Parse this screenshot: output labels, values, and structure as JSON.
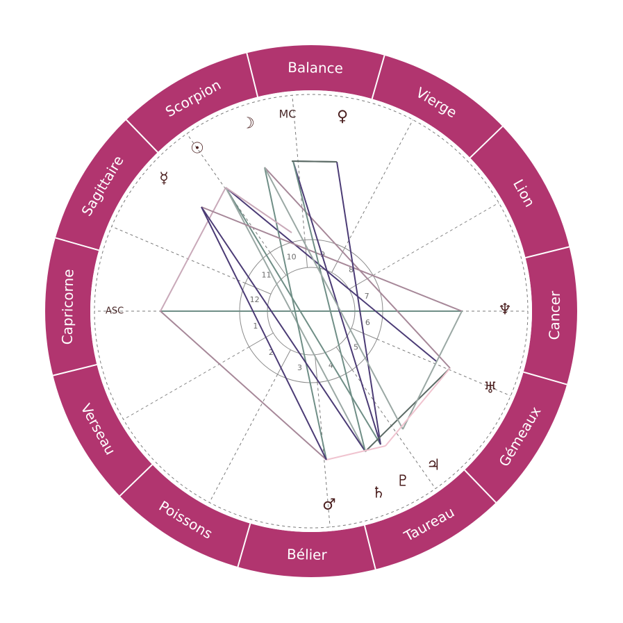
{
  "colors": {
    "zodiac_ring": "#b1356f",
    "planet_glyph": "#4a1e1e",
    "divider": "#ffffff",
    "cusp_line": "#7a7a7a"
  },
  "zodiac_signs": [
    {
      "name": "Bélier"
    },
    {
      "name": "Poissons"
    },
    {
      "name": "Verseau"
    },
    {
      "name": "Capricorne"
    },
    {
      "name": "Sagittaire"
    },
    {
      "name": "Scorpion"
    },
    {
      "name": "Balance"
    },
    {
      "name": "Vierge"
    },
    {
      "name": "Lion"
    },
    {
      "name": "Cancer"
    },
    {
      "name": "Gémeaux"
    },
    {
      "name": "Taureau"
    }
  ],
  "axes": {
    "asc": "ASC",
    "mc": "MC"
  },
  "houses": [
    "1",
    "2",
    "3",
    "4",
    "5",
    "6",
    "7",
    "8",
    "9",
    "10",
    "11",
    "12"
  ],
  "planets": [
    {
      "name": "moon-icon",
      "glyph": "☽"
    },
    {
      "name": "venus-icon",
      "glyph": "♀"
    },
    {
      "name": "sun-icon",
      "glyph": "☉"
    },
    {
      "name": "mercury-icon",
      "glyph": "☿"
    },
    {
      "name": "neptune-icon",
      "glyph": "♆"
    },
    {
      "name": "uranus-icon",
      "glyph": "♅"
    },
    {
      "name": "jupiter-icon",
      "glyph": "♃"
    },
    {
      "name": "pluto-icon",
      "glyph": "♇"
    },
    {
      "name": "saturn-icon",
      "glyph": "♄"
    },
    {
      "name": "mars-icon",
      "glyph": "♂"
    }
  ],
  "aspect_colors": [
    "#4b3b75",
    "#6f8e86",
    "#9aa8a4",
    "#c9a9b9",
    "#a68798",
    "#f0c3cf",
    "#5c6b66"
  ]
}
